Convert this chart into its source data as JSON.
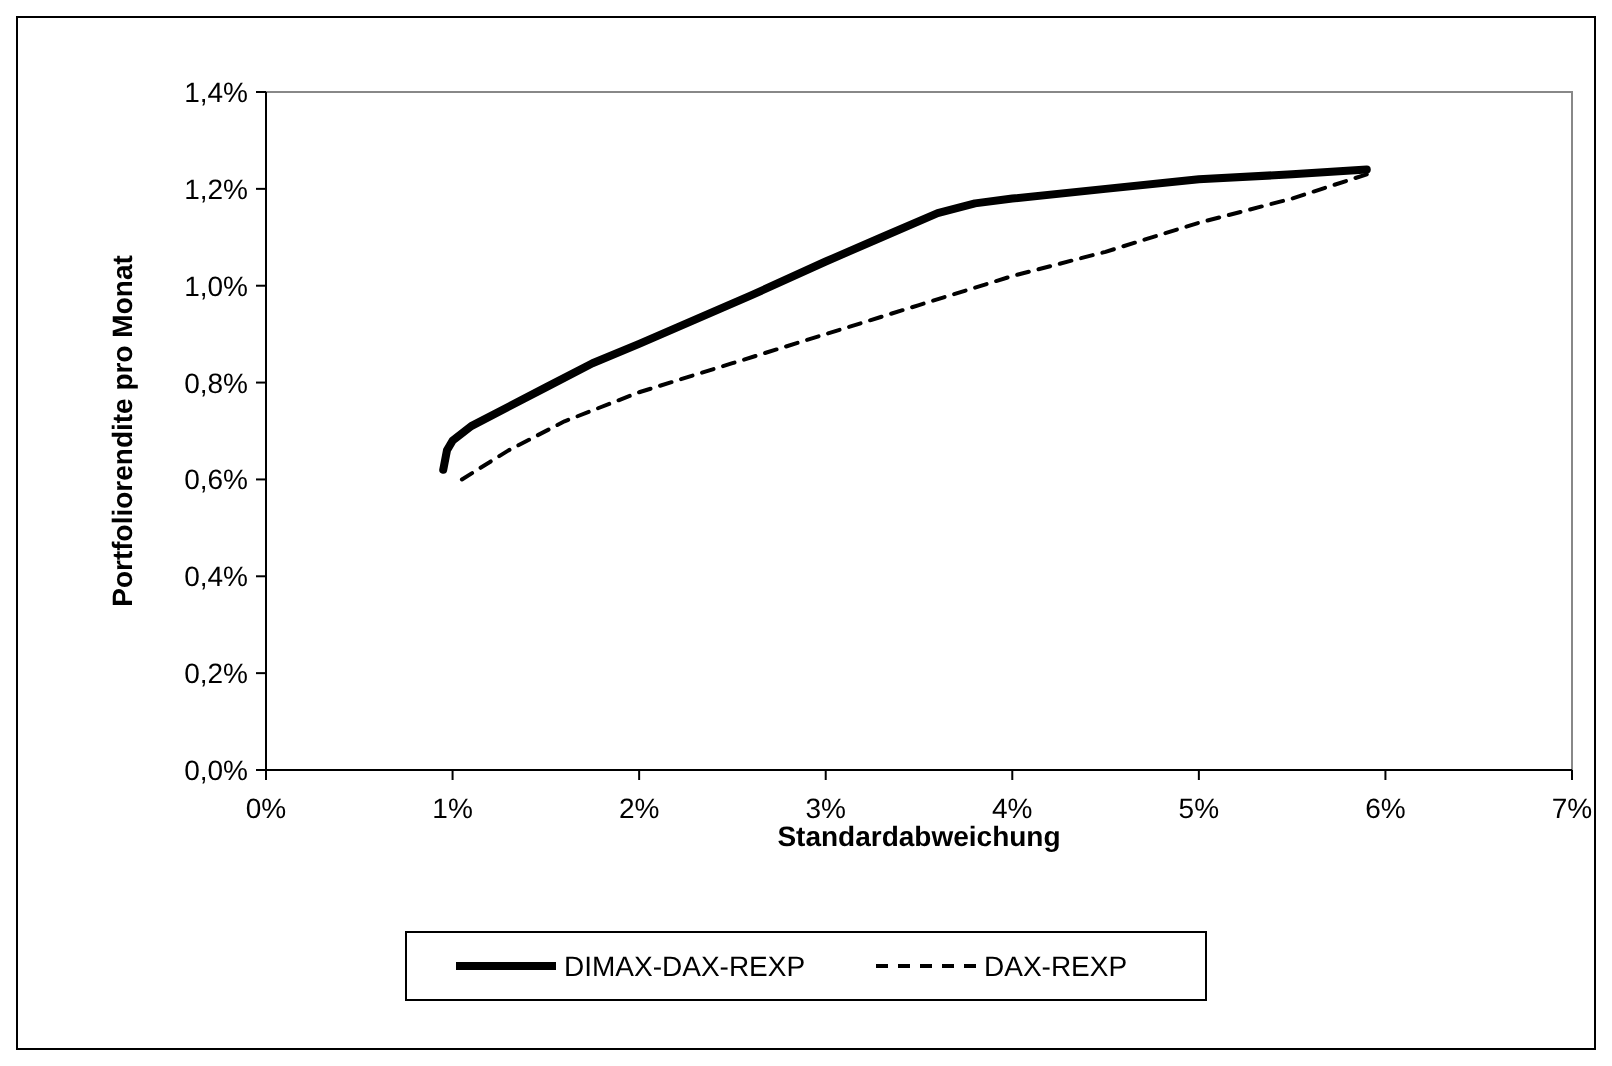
{
  "chart_data": {
    "type": "line",
    "xlabel": "Standardabweichung",
    "ylabel": "Portfoliorendite pro Monat",
    "legend": "bottom",
    "grid": false,
    "marker": "none",
    "xlim": [
      0,
      7
    ],
    "ylim": [
      0,
      1.4
    ],
    "xticks": [
      {
        "value": 0,
        "label": "0%"
      },
      {
        "value": 1,
        "label": "1%"
      },
      {
        "value": 2,
        "label": "2%"
      },
      {
        "value": 3,
        "label": "3%"
      },
      {
        "value": 4,
        "label": "4%"
      },
      {
        "value": 5,
        "label": "5%"
      },
      {
        "value": 6,
        "label": "6%"
      },
      {
        "value": 7,
        "label": "7%"
      }
    ],
    "yticks": [
      {
        "value": 0,
        "label": "0,0%"
      },
      {
        "value": 0.2,
        "label": "0,2%"
      },
      {
        "value": 0.4,
        "label": "0,4%"
      },
      {
        "value": 0.6,
        "label": "0,6%"
      },
      {
        "value": 0.8,
        "label": "0,8%"
      },
      {
        "value": 1,
        "label": "1,0%"
      },
      {
        "value": 1.2,
        "label": "1,2%"
      },
      {
        "value": 1.4,
        "label": "1,4%"
      }
    ],
    "series": [
      {
        "name": "DIMAX-DAX-REXP",
        "color": "#000000",
        "line_style": "solid",
        "x": [
          0.95,
          0.97,
          1.0,
          1.1,
          1.3,
          1.5,
          1.75,
          2.0,
          2.3,
          2.6,
          3.0,
          3.3,
          3.6,
          3.8,
          4.0,
          4.5,
          5.0,
          5.5,
          5.9
        ],
        "values": [
          0.62,
          0.66,
          0.68,
          0.71,
          0.75,
          0.79,
          0.84,
          0.88,
          0.93,
          0.98,
          1.05,
          1.1,
          1.15,
          1.17,
          1.18,
          1.2,
          1.22,
          1.23,
          1.24
        ]
      },
      {
        "name": "DAX-REXP",
        "color": "#000000",
        "line_style": "dashed",
        "x": [
          1.05,
          1.3,
          1.6,
          2.0,
          2.5,
          3.0,
          3.5,
          4.0,
          4.5,
          5.0,
          5.5,
          5.9
        ],
        "values": [
          0.6,
          0.66,
          0.72,
          0.78,
          0.84,
          0.9,
          0.96,
          1.02,
          1.07,
          1.13,
          1.18,
          1.23
        ]
      }
    ]
  }
}
